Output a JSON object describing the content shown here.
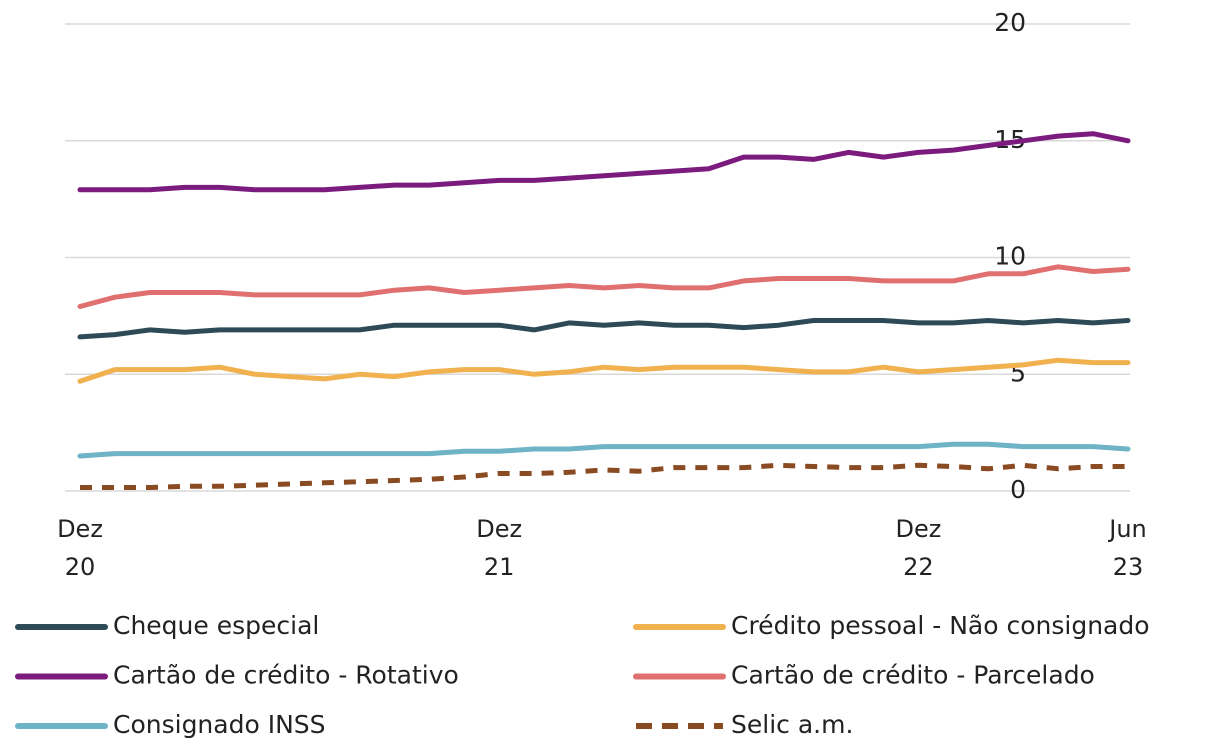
{
  "chart_data": {
    "type": "line",
    "categories": [
      "Dez\n20",
      null,
      null,
      null,
      null,
      null,
      null,
      null,
      null,
      null,
      null,
      null,
      "Dez\n21",
      null,
      null,
      null,
      null,
      null,
      null,
      null,
      null,
      null,
      null,
      null,
      "Dez\n22",
      null,
      null,
      null,
      null,
      null,
      "Jun\n23"
    ],
    "series": [
      {
        "name": "Cheque especial",
        "color": "#2e4a57",
        "values": [
          6.6,
          6.7,
          6.9,
          6.8,
          6.9,
          6.9,
          6.9,
          6.9,
          6.9,
          7.1,
          7.1,
          7.1,
          7.1,
          6.9,
          7.2,
          7.1,
          7.2,
          7.1,
          7.1,
          7.0,
          7.1,
          7.3,
          7.3,
          7.3,
          7.2,
          7.2,
          7.3,
          7.2,
          7.3,
          7.2,
          7.3
        ]
      },
      {
        "name": "Crédito pessoal - Não consignado",
        "color": "#f0b14e",
        "values": [
          4.7,
          5.2,
          5.2,
          5.2,
          5.3,
          5.0,
          4.9,
          4.8,
          5.0,
          4.9,
          5.1,
          5.2,
          5.2,
          5.0,
          5.1,
          5.3,
          5.2,
          5.3,
          5.3,
          5.3,
          5.2,
          5.1,
          5.1,
          5.3,
          5.1,
          5.2,
          5.3,
          5.4,
          5.6,
          5.5,
          5.5
        ]
      },
      {
        "name": "Cartão de crédito - Rotativo",
        "color": "#7b1b7e",
        "values": [
          12.9,
          12.9,
          12.9,
          13.0,
          13.0,
          12.9,
          12.9,
          12.9,
          13.0,
          13.1,
          13.1,
          13.2,
          13.3,
          13.3,
          13.4,
          13.5,
          13.6,
          13.7,
          13.8,
          14.3,
          14.3,
          14.2,
          14.5,
          14.3,
          14.5,
          14.6,
          14.8,
          15.0,
          15.2,
          15.3,
          15.0
        ]
      },
      {
        "name": "Cartão de crédito - Parcelado",
        "color": "#e07070",
        "values": [
          7.9,
          8.3,
          8.5,
          8.5,
          8.5,
          8.4,
          8.4,
          8.4,
          8.4,
          8.6,
          8.7,
          8.5,
          8.6,
          8.7,
          8.8,
          8.7,
          8.8,
          8.7,
          8.7,
          9.0,
          9.1,
          9.1,
          9.1,
          9.0,
          9.0,
          9.0,
          9.3,
          9.3,
          9.6,
          9.4,
          9.5
        ]
      },
      {
        "name": "Consignado INSS",
        "color": "#6fb3c7",
        "values": [
          1.5,
          1.6,
          1.6,
          1.6,
          1.6,
          1.6,
          1.6,
          1.6,
          1.6,
          1.6,
          1.6,
          1.7,
          1.7,
          1.8,
          1.8,
          1.9,
          1.9,
          1.9,
          1.9,
          1.9,
          1.9,
          1.9,
          1.9,
          1.9,
          1.9,
          2.0,
          2.0,
          1.9,
          1.9,
          1.9,
          1.8
        ]
      },
      {
        "name": "Selic a.m.",
        "color": "#8a4a22",
        "dashed": true,
        "values": [
          0.15,
          0.15,
          0.15,
          0.2,
          0.2,
          0.25,
          0.3,
          0.35,
          0.4,
          0.45,
          0.5,
          0.6,
          0.75,
          0.75,
          0.8,
          0.9,
          0.85,
          1.0,
          1.0,
          1.0,
          1.1,
          1.05,
          1.0,
          1.0,
          1.1,
          1.05,
          0.95,
          1.1,
          0.95,
          1.05,
          1.05
        ]
      }
    ],
    "ylim": [
      0,
      20
    ],
    "yticks": [
      0,
      5,
      10,
      15,
      20
    ],
    "grid": true,
    "y_axis_side": "right"
  }
}
